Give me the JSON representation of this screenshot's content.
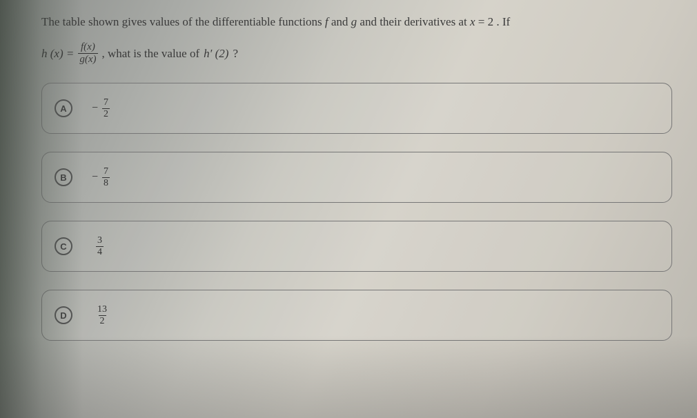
{
  "colors": {
    "text": "#2a2a2a",
    "border": "#777777",
    "markerBorder": "#555555"
  },
  "stem": {
    "line1_pre": "The table shown gives values of the differentiable functions ",
    "f": "f",
    "and1": " and ",
    "g": "g",
    "line1_mid": " and their derivatives at ",
    "eq_lhs": "x",
    "eq_eq": " = ",
    "eq_rhs": "2",
    "line1_post": ". If",
    "hx": "h (x) = ",
    "frac_num": "f(x)",
    "frac_den": "g(x)",
    "q_text": ", what is the value of ",
    "hprime": "h′ (2)",
    "qmark": " ?"
  },
  "options": [
    {
      "id": "A",
      "label": "A",
      "neg": "−",
      "num": "7",
      "den": "2"
    },
    {
      "id": "B",
      "label": "B",
      "neg": "−",
      "num": "7",
      "den": "8"
    },
    {
      "id": "C",
      "label": "C",
      "neg": "",
      "num": "3",
      "den": "4"
    },
    {
      "id": "D",
      "label": "D",
      "neg": "",
      "num": "13",
      "den": "2"
    }
  ]
}
